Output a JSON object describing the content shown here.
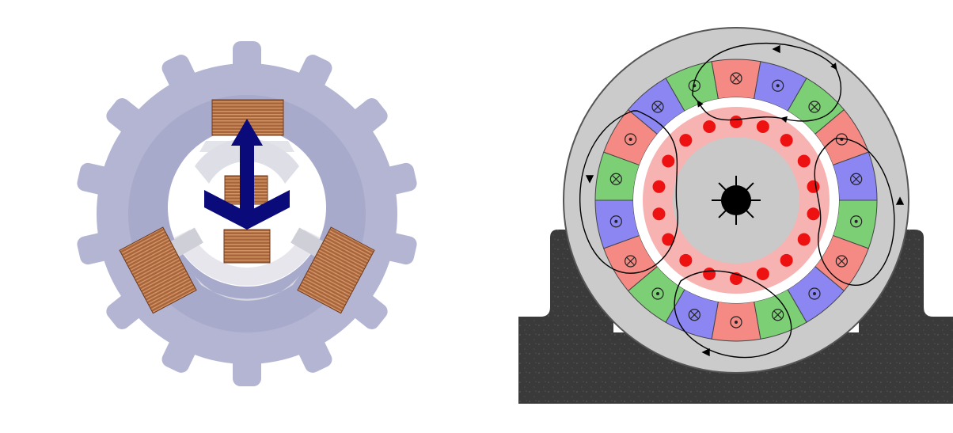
{
  "left_diagram": {
    "coil_count": 3,
    "colors": {
      "gear": "#b3b5d3",
      "gear_dark": "#9ea1c6",
      "hub": "#e6e6ec",
      "copper": "#a2603a",
      "copper_light": "#c98a5c",
      "arrow": "#0a0a7a"
    },
    "icons": [
      "stator-gear-icon",
      "copper-coil-icon",
      "rotation-arrow-icon"
    ]
  },
  "right_diagram": {
    "stator_segment_pattern": [
      "green",
      "red",
      "blue"
    ],
    "stator_segment_count": 18,
    "winding_symbols": [
      "⊙",
      "⊗"
    ],
    "rotor_magnet_dot_count": 18,
    "flux_loop_count": 4,
    "colors": {
      "housing": "#cbcbcb",
      "housing_edge": "#555555",
      "base": "#3a3a3a",
      "segment_green": "#7ccf74",
      "segment_red": "#f58a84",
      "segment_blue": "#8b86f2",
      "air_gap": "#ffffff",
      "rotor_ring": "#f7b3b1",
      "rotor_core": "#c9c9c9",
      "magnet_dot": "#ee1111",
      "shaft": "#000000"
    },
    "icons": [
      "dot-out-icon",
      "cross-in-icon",
      "shaft-icon",
      "flux-line-arrow-icon"
    ]
  }
}
